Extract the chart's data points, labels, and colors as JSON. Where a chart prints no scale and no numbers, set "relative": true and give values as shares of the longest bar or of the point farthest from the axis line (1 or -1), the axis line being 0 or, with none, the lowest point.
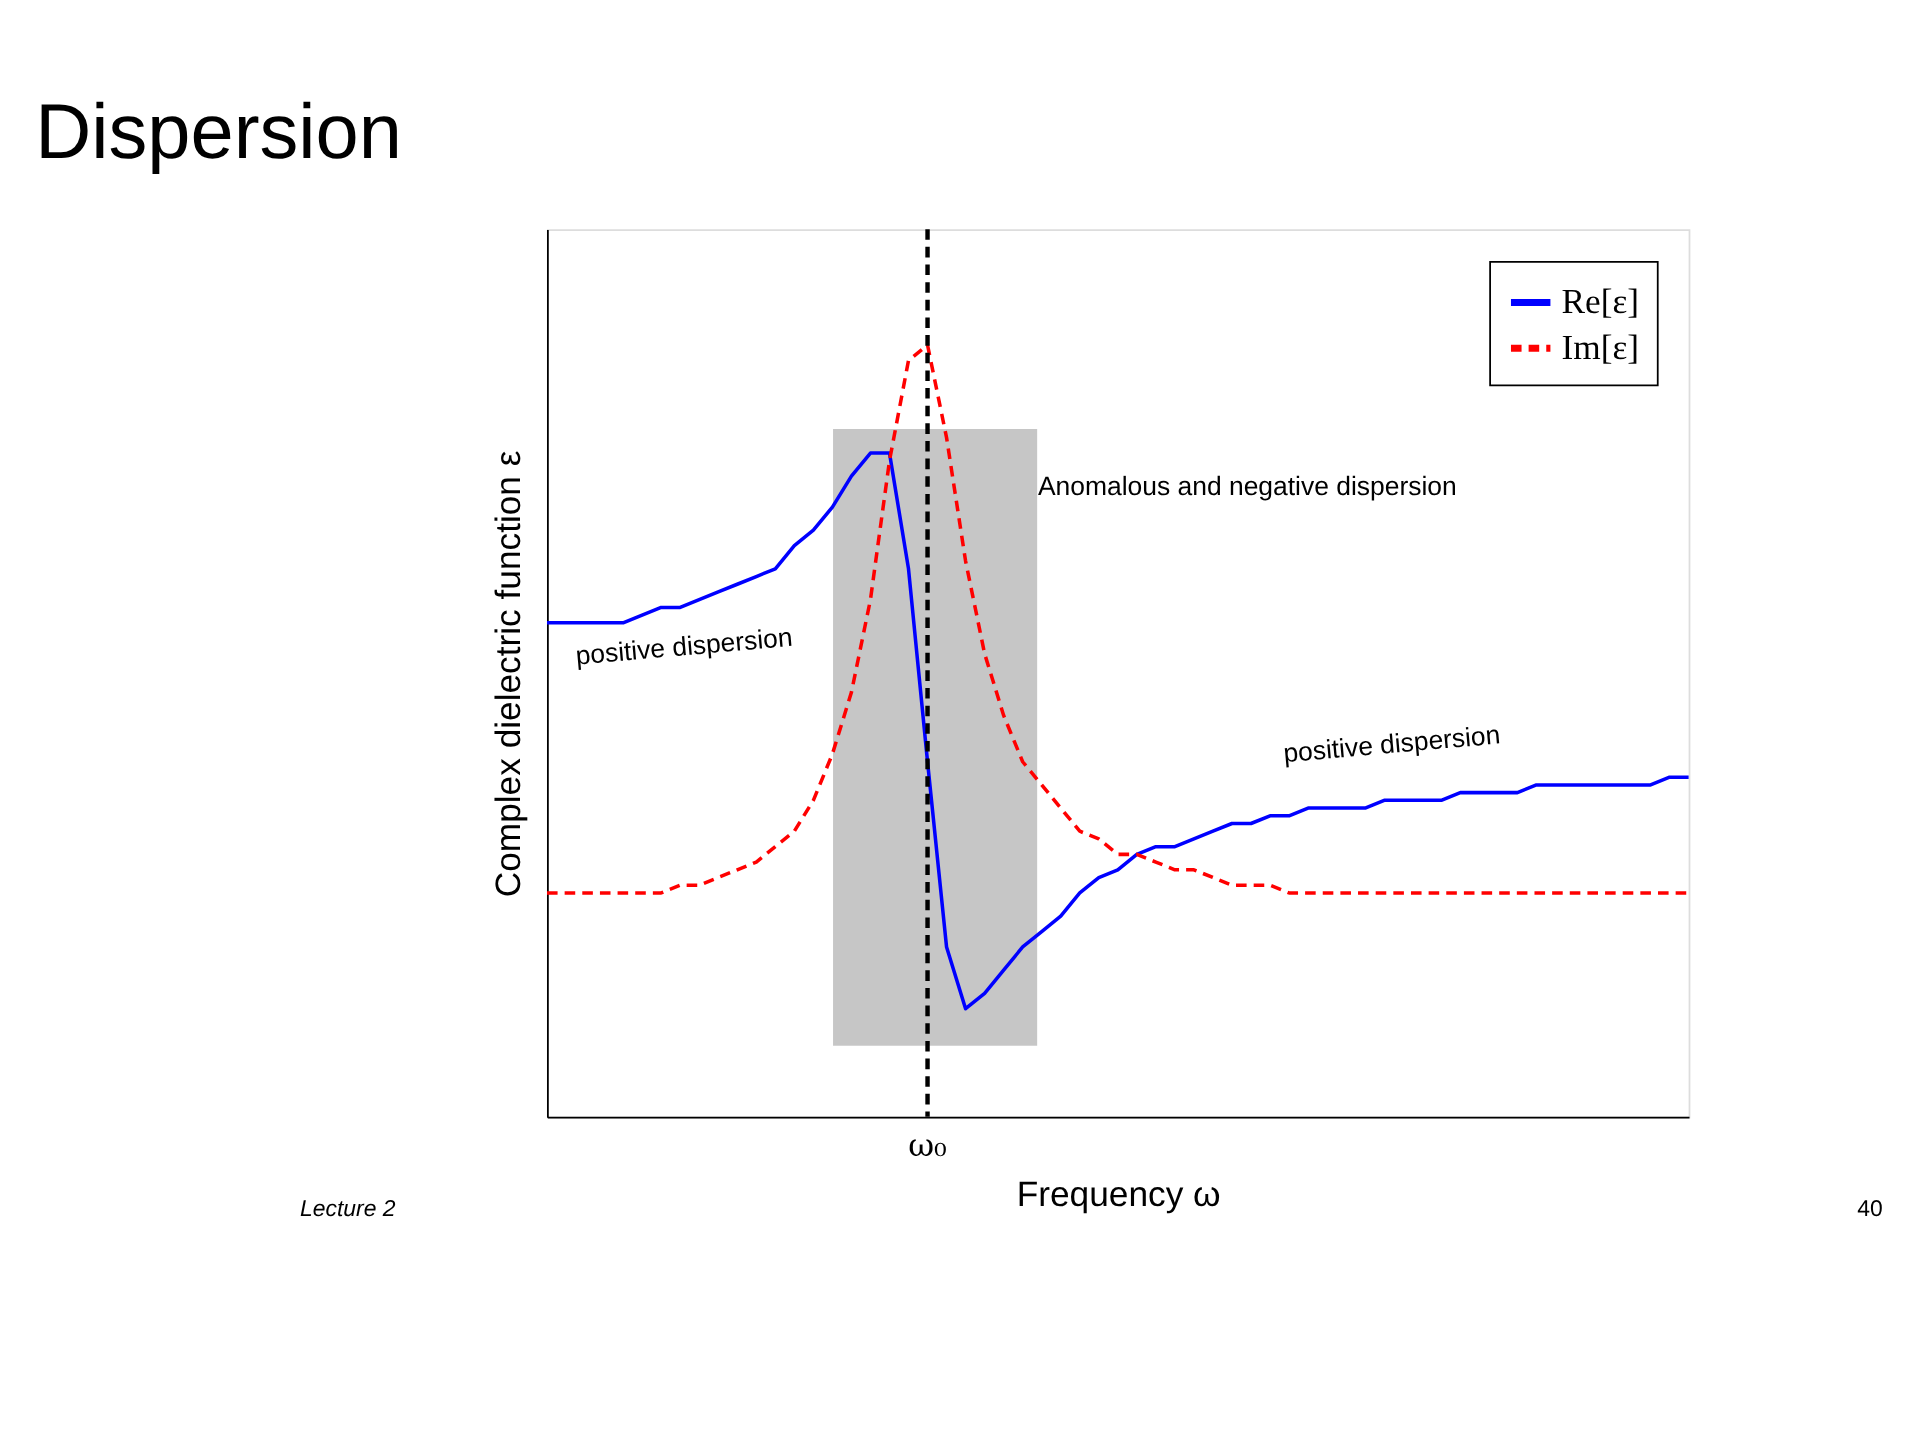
{
  "chart_data": {
    "type": "line",
    "title": "Dispersion",
    "xlabel": "Frequency ω",
    "ylabel": "Complex dielectric function ε",
    "relative": true,
    "categories": [
      null,
      null,
      null,
      null,
      null,
      null,
      null,
      null,
      null,
      null,
      null,
      null,
      null,
      null,
      null,
      null,
      null,
      null,
      null,
      null,
      null,
      null,
      null,
      null,
      null,
      null,
      null,
      null,
      null,
      null,
      null,
      null,
      null,
      null,
      null,
      null,
      null,
      null,
      null,
      null,
      null,
      null,
      null,
      null,
      null,
      null,
      null,
      null,
      null,
      null,
      null,
      null,
      null,
      null,
      null,
      null,
      null,
      null,
      null,
      null,
      null
    ],
    "series": [
      {
        "name": "Re[ε]",
        "color": "#0000ff",
        "line_style": "solid",
        "values": [
          0.64,
          0.64,
          0.64,
          0.64,
          0.64,
          0.65,
          0.66,
          0.66,
          0.67,
          0.68,
          0.69,
          0.7,
          0.71,
          0.74,
          0.76,
          0.79,
          0.83,
          0.86,
          0.86,
          0.71,
          0.46,
          0.22,
          0.14,
          0.16,
          0.19,
          0.22,
          0.24,
          0.26,
          0.29,
          0.31,
          0.32,
          0.34,
          0.35,
          0.35,
          0.36,
          0.37,
          0.38,
          0.38,
          0.39,
          0.39,
          0.4,
          0.4,
          0.4,
          0.4,
          0.41,
          0.41,
          0.41,
          0.41,
          0.42,
          0.42,
          0.42,
          0.42,
          0.43,
          0.43,
          0.43,
          0.43,
          0.43,
          0.43,
          0.43,
          0.44,
          0.44
        ]
      },
      {
        "name": "Im[ε]",
        "color": "#ff0000",
        "line_style": "dashed",
        "values": [
          0.29,
          0.29,
          0.29,
          0.29,
          0.29,
          0.29,
          0.29,
          0.3,
          0.3,
          0.31,
          0.32,
          0.33,
          0.35,
          0.37,
          0.41,
          0.47,
          0.55,
          0.67,
          0.85,
          0.98,
          1.0,
          0.88,
          0.72,
          0.6,
          0.52,
          0.46,
          0.43,
          0.4,
          0.37,
          0.36,
          0.34,
          0.34,
          0.33,
          0.32,
          0.32,
          0.31,
          0.3,
          0.3,
          0.3,
          0.29,
          0.29,
          0.29,
          0.29,
          0.29,
          0.29,
          0.29,
          0.29,
          0.29,
          0.29,
          0.29,
          0.29,
          0.29,
          0.29,
          0.29,
          0.29,
          0.29,
          0.29,
          0.29,
          0.29,
          0.29,
          0.29
        ]
      }
    ],
    "ref_lines": [
      {
        "axis": "x",
        "label": "ω₀",
        "color": "#000000",
        "line_style": "dashed"
      }
    ],
    "annotations": [
      "Anomalous and negative dispersion",
      "positive dispersion",
      "positive dispersion",
      "Lecture 2",
      "40"
    ],
    "legend": "top right",
    "grid": false
  }
}
